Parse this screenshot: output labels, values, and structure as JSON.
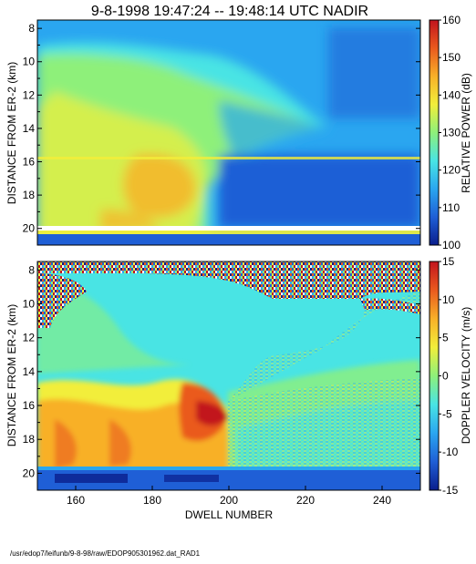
{
  "title": "9-8-1998  19:47:24 -- 19:48:14 UTC  NADIR",
  "footer_path": "/usr/edop7/leifunb/9-8-98/raw/EDOP905301962.dat_RAD1",
  "chart_data": [
    {
      "type": "heatmap",
      "name": "power",
      "xlabel": "",
      "ylabel": "DISTANCE FROM ER-2 (km)",
      "x_range": [
        150,
        250
      ],
      "y_range": [
        7.5,
        21.0
      ],
      "y_inverted": true,
      "yticks": [
        8,
        10,
        12,
        14,
        16,
        18,
        20
      ],
      "colorbar": {
        "label": "RELATIVE POWER (dB)",
        "range": [
          100,
          160
        ],
        "ticks": [
          100,
          110,
          120,
          130,
          140,
          150,
          160
        ]
      }
    },
    {
      "type": "heatmap",
      "name": "velocity",
      "xlabel": "DWELL NUMBER",
      "ylabel": "DISTANCE FROM ER-2 (km)",
      "x_range": [
        150,
        250
      ],
      "y_range": [
        7.5,
        21.0
      ],
      "y_inverted": true,
      "xticks": [
        160,
        180,
        200,
        220,
        240
      ],
      "yticks": [
        8,
        10,
        12,
        14,
        16,
        18,
        20
      ],
      "colorbar": {
        "label": "DOPPLER VELOCITY (m/s)",
        "range": [
          -15,
          15
        ],
        "ticks": [
          -15,
          -10,
          -5,
          0,
          5,
          10,
          15
        ]
      }
    }
  ],
  "colormap": [
    "#0a1e8c",
    "#1f5fd6",
    "#2aa6f0",
    "#49e4e4",
    "#8ef07a",
    "#f2ee3a",
    "#f8b028",
    "#ea5a1e",
    "#c2141e"
  ]
}
